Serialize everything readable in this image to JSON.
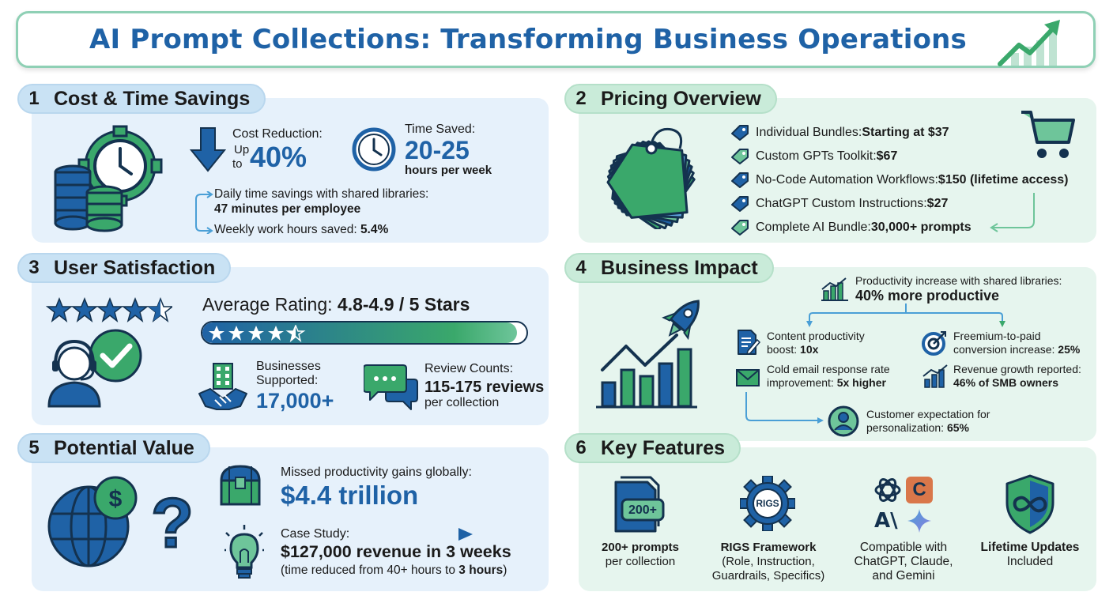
{
  "title": "AI Prompt Collections: Transforming Business Operations",
  "colors": {
    "primary_blue": "#1f62a6",
    "accent_green": "#3aa86b",
    "panel_blue": "#e6f1fb",
    "panel_green": "#e6f5ee"
  },
  "section1": {
    "num": "1",
    "label": "Cost & Time Savings",
    "cost_label": "Cost Reduction:",
    "cost_up": "Up",
    "cost_to": "to",
    "cost_value": "40%",
    "time_label": "Time Saved:",
    "time_value": "20-25",
    "time_unit": "hours per week",
    "daily_label": "Daily time savings with shared libraries:",
    "daily_value": "47 minutes per employee",
    "weekly_label": "Weekly work hours saved: ",
    "weekly_value": "5.4%"
  },
  "section2": {
    "num": "2",
    "label": "Pricing Overview",
    "items": [
      {
        "name": "Individual Bundles: ",
        "price": "Starting at $37"
      },
      {
        "name": "Custom GPTs Toolkit: ",
        "price": "$67"
      },
      {
        "name": "No-Code Automation Workflows: ",
        "price": "$150 (lifetime access)"
      },
      {
        "name": "ChatGPT Custom Instructions: ",
        "price": "$27"
      },
      {
        "name": "Complete AI Bundle: ",
        "price": "30,000+ prompts"
      }
    ]
  },
  "section3": {
    "num": "3",
    "label": "User Satisfaction",
    "rating_label": "Average Rating: ",
    "rating_value": "4.8-4.9 / 5 Stars",
    "rating_fraction": 0.97,
    "biz_label1": "Businesses",
    "biz_label2": "Supported:",
    "biz_value": "17,000+",
    "review_label": "Review Counts:",
    "review_value": "115-175 reviews",
    "review_unit": "per collection"
  },
  "section4": {
    "num": "4",
    "label": "Business Impact",
    "headline_label": "Productivity increase with shared libraries:",
    "headline_value": "40% more productive",
    "content_l1": "Content productivity",
    "content_l2": "boost: ",
    "content_v": "10x",
    "freemium_l1": "Freemium-to-paid",
    "freemium_l2": "conversion increase: ",
    "freemium_v": "25%",
    "email_l1": "Cold email response rate",
    "email_l2": "improvement: ",
    "email_v": "5x higher",
    "revenue_l1": "Revenue growth reported:",
    "revenue_v": "46% of SMB owners",
    "cust_l1": "Customer expectation for",
    "cust_l2": "personalization: ",
    "cust_v": "65%"
  },
  "section5": {
    "num": "5",
    "label": "Potential Value",
    "missed_label": "Missed productivity gains globally:",
    "missed_value": "$4.4 trillion",
    "case_label": "Case Study:",
    "case_value": "$127,000 revenue in 3 weeks",
    "case_note_a": "(time reduced from 40+ hours to ",
    "case_note_b": "3 hours",
    "case_note_c": ")"
  },
  "section6": {
    "num": "6",
    "label": "Key Features",
    "f1_badge": "200+",
    "f1_title": "200+ prompts",
    "f1_sub": "per collection",
    "f2_badge": "RIGS",
    "f2_title": "RIGS Framework",
    "f2_sub1": "(Role, Instruction,",
    "f2_sub2": "Guardrails, Specifics)",
    "f3_c": "C",
    "f3_a": "A\\",
    "f3_l1": "Compatible with",
    "f3_l2": "ChatGPT, Claude,",
    "f3_l3": "and Gemini",
    "f4_title": "Lifetime Updates",
    "f4_sub": "Included"
  }
}
